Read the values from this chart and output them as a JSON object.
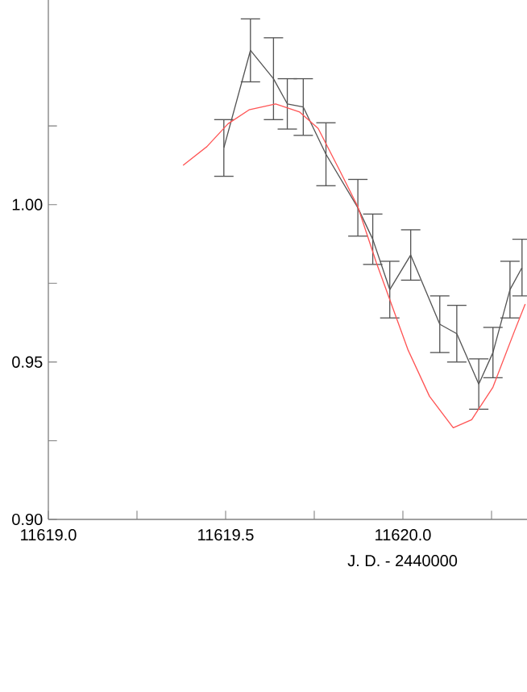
{
  "chart_data": {
    "type": "line",
    "xlabel": "J. D. - 2440000",
    "x": [
      11619.495,
      11619.57,
      11619.635,
      11619.674,
      11619.719,
      11619.783,
      11619.873,
      11619.915,
      11619.963,
      11620.022,
      11620.104,
      11620.152,
      11620.214,
      11620.254,
      11620.302,
      11620.336
    ],
    "series": [
      {
        "color": "#555555",
        "values": [
          1.018,
          1.049,
          1.04,
          1.032,
          1.031,
          1.016,
          0.999,
          0.989,
          0.973,
          0.984,
          0.962,
          0.959,
          0.943,
          0.953,
          0.973,
          0.98
        ],
        "errors": [
          0.009,
          0.01,
          0.013,
          0.008,
          0.009,
          0.01,
          0.009,
          0.008,
          0.009,
          0.008,
          0.009,
          0.009,
          0.008,
          0.008,
          0.009,
          0.009
        ]
      },
      {
        "type": "line",
        "color": "#ff5555",
        "x": [
          11619.38,
          11619.447,
          11619.507,
          11619.566,
          11619.641,
          11619.709,
          11619.761,
          11619.821,
          11619.873,
          11619.925,
          11620.015,
          11620.075,
          11620.142,
          11620.194,
          11620.254,
          11620.314,
          11620.345
        ],
        "values": [
          1.0125,
          1.0184,
          1.0257,
          1.0301,
          1.032,
          1.0294,
          1.0242,
          1.011,
          0.9993,
          0.9816,
          0.9537,
          0.9391,
          0.9291,
          0.9317,
          0.942,
          0.9596,
          0.9684
        ]
      }
    ],
    "xlim": [
      11619.0,
      11620.35
    ],
    "ylim": [
      0.9,
      1.065
    ],
    "xticks": [
      {
        "value": 11619.0,
        "label": "11619.0"
      },
      {
        "value": 11619.25,
        "label": null
      },
      {
        "value": 11619.5,
        "label": "11619.5"
      },
      {
        "value": 11619.75,
        "label": null
      },
      {
        "value": 11620.0,
        "label": "11620.0"
      },
      {
        "value": 11620.25,
        "label": null
      }
    ],
    "yticks": [
      {
        "value": 0.9,
        "label": "0.90"
      },
      {
        "value": 0.925,
        "label": null
      },
      {
        "value": 0.95,
        "label": "0.95"
      },
      {
        "value": 0.975,
        "label": null
      },
      {
        "value": 1.0,
        "label": "1.00"
      },
      {
        "value": 1.025,
        "label": null
      }
    ]
  }
}
